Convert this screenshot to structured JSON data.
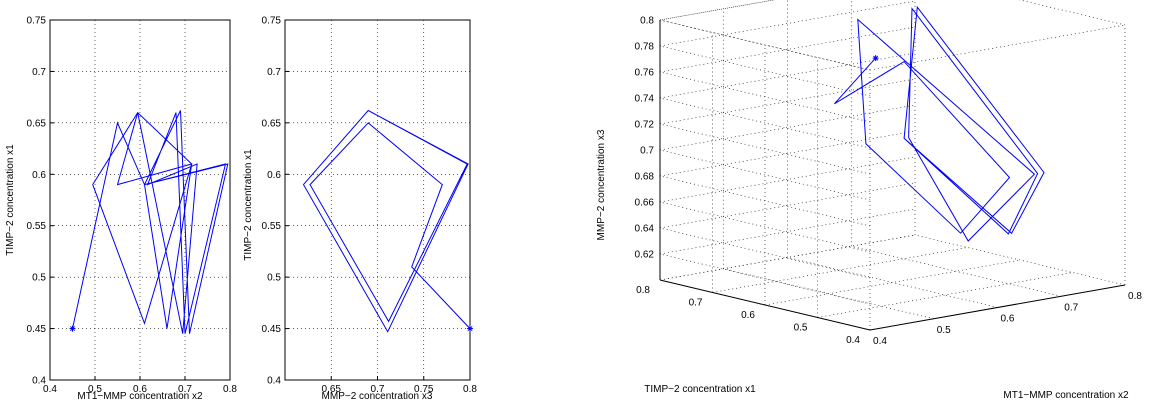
{
  "chart_data": [
    {
      "type": "line",
      "xlabel": "MT1−MMP concentration x2",
      "ylabel": "TIMP−2 concentration x1",
      "xlim": [
        0.4,
        0.8
      ],
      "ylim": [
        0.4,
        0.75
      ],
      "xticks": [
        "0.4",
        "0.5",
        "0.6",
        "0.7",
        "0.8"
      ],
      "yticks": [
        "0.4",
        "0.45",
        "0.5",
        "0.55",
        "0.6",
        "0.65",
        "0.7",
        "0.75"
      ],
      "grid": true,
      "line_color": "#0000ff",
      "start_marker": {
        "x": 0.45,
        "y": 0.45
      },
      "series": [
        {
          "values": [
            [
              0.45,
              0.45
            ],
            [
              0.55,
              0.65
            ],
            [
              0.61,
              0.59
            ],
            [
              0.66,
              0.45
            ],
            [
              0.715,
              0.61
            ],
            [
              0.55,
              0.59
            ],
            [
              0.595,
              0.66
            ],
            [
              0.695,
              0.445
            ],
            [
              0.727,
              0.61
            ],
            [
              0.617,
              0.59
            ],
            [
              0.68,
              0.66
            ],
            [
              0.7,
              0.445
            ],
            [
              0.79,
              0.61
            ],
            [
              0.61,
              0.59
            ],
            [
              0.69,
              0.662
            ],
            [
              0.71,
              0.445
            ],
            [
              0.795,
              0.61
            ],
            [
              0.61,
              0.59
            ],
            [
              0.69,
              0.662
            ],
            [
              0.71,
              0.445
            ],
            [
              0.795,
              0.61
            ],
            [
              0.61,
              0.59
            ],
            [
              0.69,
              0.662
            ]
          ]
        },
        {
          "values": [
            [
              0.495,
              0.59
            ],
            [
              0.61,
              0.455
            ],
            [
              0.715,
              0.61
            ],
            [
              0.595,
              0.66
            ],
            [
              0.495,
              0.59
            ]
          ]
        }
      ]
    },
    {
      "type": "line",
      "xlabel": "MMP−2 concentration x3",
      "ylabel": "TIMP−2 concentration x1",
      "xlim": [
        0.6,
        0.8
      ],
      "ylim": [
        0.4,
        0.75
      ],
      "xticks": [
        "0.65",
        "0.7",
        "0.75",
        "0.8"
      ],
      "yticks": [
        "0.4",
        "0.45",
        "0.5",
        "0.55",
        "0.6",
        "0.65",
        "0.7",
        "0.75"
      ],
      "grid": true,
      "line_color": "#0000ff",
      "start_marker": {
        "x": 0.8,
        "y": 0.45
      },
      "series": [
        {
          "values": [
            [
              0.8,
              0.45
            ],
            [
              0.737,
              0.51
            ],
            [
              0.77,
              0.59
            ],
            [
              0.69,
              0.65
            ],
            [
              0.627,
              0.59
            ],
            [
              0.712,
              0.457
            ],
            [
              0.797,
              0.61
            ],
            [
              0.69,
              0.662
            ],
            [
              0.62,
              0.59
            ],
            [
              0.711,
              0.447
            ],
            [
              0.798,
              0.61
            ],
            [
              0.69,
              0.662
            ],
            [
              0.62,
              0.59
            ],
            [
              0.711,
              0.447
            ],
            [
              0.798,
              0.61
            ],
            [
              0.69,
              0.662
            ],
            [
              0.62,
              0.59
            ],
            [
              0.711,
              0.447
            ],
            [
              0.798,
              0.61
            ],
            [
              0.69,
              0.662
            ]
          ]
        }
      ]
    },
    {
      "type": "line",
      "xlabel": "MT1−MMP concentration x2",
      "ylabel": "TIMP−2 concentration x1",
      "zlabel": "MMP−2 concentration x3",
      "x_ticks": [
        "0.4",
        "0.5",
        "0.6",
        "0.7",
        "0.8"
      ],
      "y_ticks": [
        "0.4",
        "0.5",
        "0.6",
        "0.7",
        "0.8"
      ],
      "z_ticks": [
        "0.62",
        "0.64",
        "0.66",
        "0.68",
        "0.7",
        "0.72",
        "0.74",
        "0.76",
        "0.78",
        "0.8"
      ],
      "xlim": [
        0.4,
        0.8
      ],
      "ylim": [
        0.4,
        0.8
      ],
      "zlim": [
        0.6,
        0.8
      ],
      "grid": true,
      "line_color": "#0000ff",
      "start_marker": {
        "x": 0.45,
        "y": 0.45,
        "z": 0.8
      },
      "series": [
        {
          "values": [
            [
              0.45,
              0.45,
              0.8
            ],
            [
              0.55,
              0.65,
              0.737
            ],
            [
              0.61,
              0.59,
              0.77
            ],
            [
              0.66,
              0.45,
              0.69
            ],
            [
              0.715,
              0.61,
              0.627
            ],
            [
              0.55,
              0.59,
              0.712
            ],
            [
              0.595,
              0.66,
              0.797
            ],
            [
              0.695,
              0.445,
              0.69
            ],
            [
              0.727,
              0.61,
              0.62
            ],
            [
              0.617,
              0.59,
              0.711
            ],
            [
              0.68,
              0.66,
              0.798
            ],
            [
              0.7,
              0.445,
              0.69
            ],
            [
              0.79,
              0.61,
              0.62
            ],
            [
              0.61,
              0.59,
              0.711
            ],
            [
              0.69,
              0.662,
              0.798
            ],
            [
              0.71,
              0.445,
              0.69
            ],
            [
              0.795,
              0.61,
              0.62
            ],
            [
              0.61,
              0.59,
              0.711
            ],
            [
              0.69,
              0.662,
              0.798
            ],
            [
              0.71,
              0.445,
              0.69
            ],
            [
              0.795,
              0.61,
              0.62
            ],
            [
              0.61,
              0.59,
              0.711
            ],
            [
              0.69,
              0.662,
              0.798
            ]
          ]
        }
      ]
    }
  ]
}
